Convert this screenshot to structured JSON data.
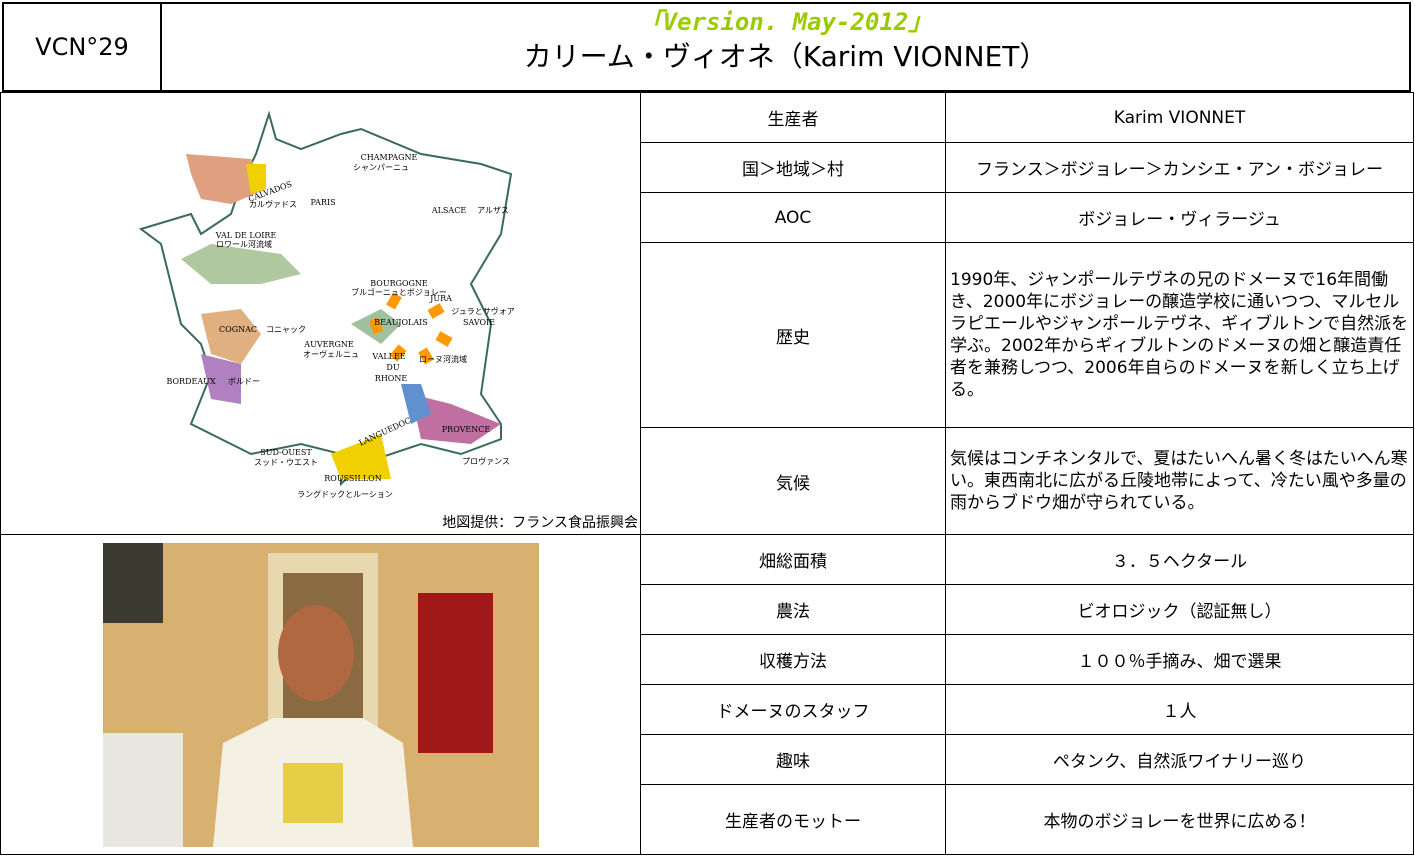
{
  "header": {
    "code": "VCN°29",
    "version": "「Version. May-2012」",
    "title": "カリーム・ヴィオネ（Karim VIONNET）"
  },
  "map": {
    "caption": "地図提供：フランス食品振興会",
    "labels": [
      "CHAMPAGNE",
      "シャンパーニュ",
      "CALVADOS",
      "カルヴァドス",
      "PARIS",
      "ALSACE",
      "アルザス",
      "VAL DE LOIRE",
      "ロワール河流域",
      "BOURGOGNE",
      "ブルゴーニュとボジョレー",
      "JURA",
      "ジュラとサヴォア",
      "SAVOIE",
      "BEAUJOLAIS",
      "COGNAC",
      "コニャック",
      "AUVERGNE",
      "オーヴェルニュ",
      "VALLEE",
      "DU",
      "RHONE",
      "ローヌ河流域",
      "BORDEAUX",
      "ボルドー",
      "LANGUEDOC",
      "PROVENCE",
      "プロヴァンス",
      "SUD-OUEST",
      "スッド・ウエスト",
      "ROUSSILLON",
      "ラングドックとルーション"
    ]
  },
  "table": {
    "rows": [
      [
        "生産者",
        "Karim VIONNET"
      ],
      [
        "国＞地域＞村",
        "フランス＞ボジョレー＞カンシエ・アン・ボジョレー"
      ],
      [
        "AOC",
        "ボジョレー・ヴィラージュ"
      ],
      [
        "歴史",
        "1990年、ジャンポールテヴネの兄のドメーヌで16年間働き、2000年にボジョレーの醸造学校に通いつつ、マルセルラピエールやジャンポールテヴネ、ギィブルトンで自然派を学ぶ。2002年からギィブルトンのドメーヌの畑と醸造責任者を兼務しつつ、2006年自らのドメーヌを新しく立ち上げる。"
      ],
      [
        "気候",
        "気候はコンチネンタルで、夏はたいへん暑く冬はたいへん寒い。東西南北に広がる丘陵地帯によって、冷たい風や多量の雨からブドウ畑が守られている。"
      ],
      [
        "畑総面積",
        "３．５ヘクタール"
      ],
      [
        "農法",
        "ビオロジック（認証無し）"
      ],
      [
        "収穫方法",
        "１００％手摘み、畑で選果"
      ],
      [
        "ドメーヌのスタッフ",
        "１人"
      ],
      [
        "趣味",
        "ペタンク、自然派ワイナリー巡り"
      ],
      [
        "生産者のモットー",
        "本物のボジョレーを世界に広める！"
      ]
    ]
  }
}
